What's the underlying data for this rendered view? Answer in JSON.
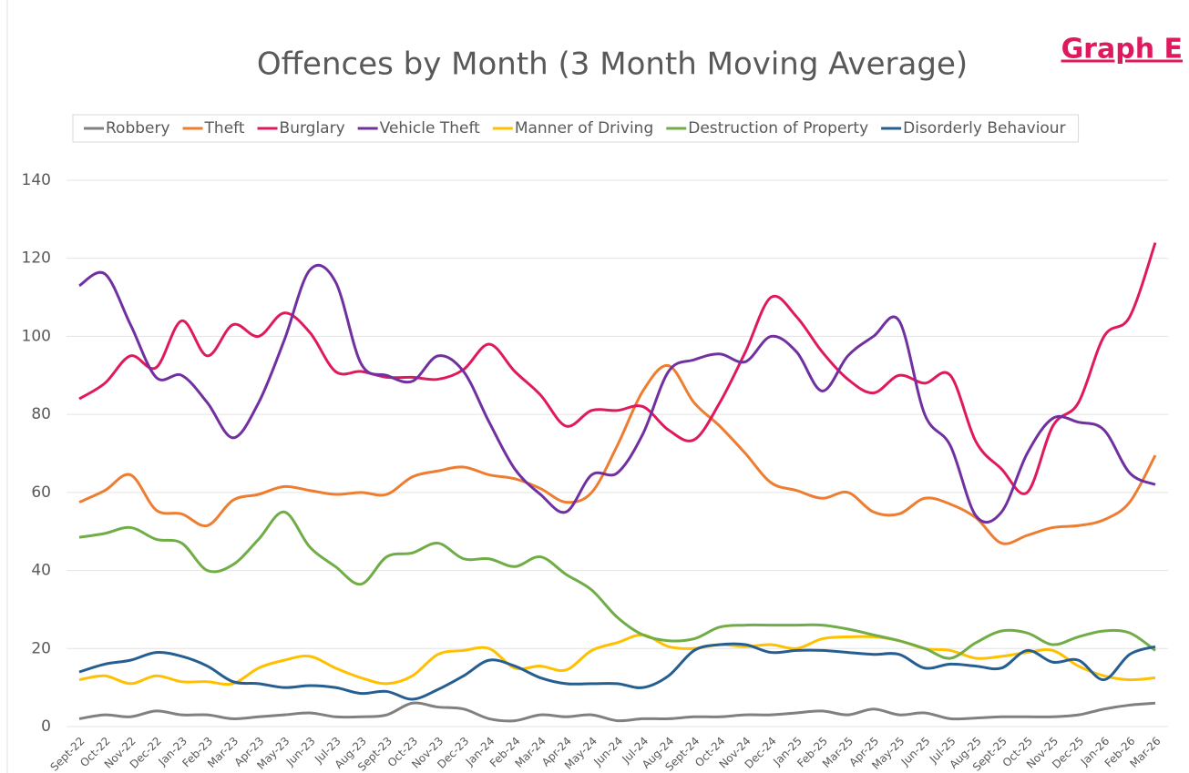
{
  "chart_data": {
    "type": "line",
    "title": "Offences by Month (3 Month Moving Average)",
    "annotation": "Graph E",
    "categories": [
      "Sept-22",
      "Oct-22",
      "Nov-22",
      "Dec-22",
      "Jan-23",
      "Feb-23",
      "Mar-23",
      "Apr-23",
      "May-23",
      "Jun-23",
      "Jul-23",
      "Aug-23",
      "Sept-23",
      "Oct-23",
      "Nov-23",
      "Dec-23",
      "Jan-24",
      "Feb-24",
      "Mar-24",
      "Apr-24",
      "May-24",
      "Jun-24",
      "Jul-24",
      "Aug-24",
      "Sept-24",
      "Oct-24",
      "Nov-24",
      "Dec-24",
      "Jan-25",
      "Feb-25",
      "Mar-25",
      "Apr-25",
      "May-25",
      "Jun-25",
      "Jul-25",
      "Aug-25",
      "Sept-25",
      "Oct-25",
      "Nov-25",
      "Dec-25",
      "Jan-26",
      "Feb-26",
      "Mar-26"
    ],
    "series": [
      {
        "name": "Robbery",
        "color": "#808080",
        "values": [
          2,
          3,
          2.5,
          4,
          3,
          3,
          2,
          2.5,
          3,
          3.5,
          2.5,
          2.5,
          3,
          6,
          5,
          4.5,
          2,
          1.5,
          3,
          2.5,
          3,
          1.5,
          2,
          2,
          2.5,
          2.5,
          3,
          3,
          3.5,
          4,
          3,
          4.5,
          3,
          3.5,
          2,
          2.2,
          2.5,
          2.5,
          2.5,
          3,
          4.5,
          5.5,
          6
        ]
      },
      {
        "name": "Theft",
        "color": "#ed7d31",
        "values": [
          57.5,
          60.5,
          64.5,
          55.5,
          54.5,
          51.5,
          58,
          59.5,
          61.5,
          60.5,
          59.5,
          60,
          59.5,
          64,
          65.5,
          66.5,
          64.5,
          63.5,
          61,
          57.5,
          60,
          72,
          86,
          92.5,
          83,
          77,
          70,
          62.5,
          60.5,
          58.5,
          60,
          55,
          54.5,
          58.5,
          57,
          53.5,
          47,
          49,
          51,
          51.5,
          53,
          57.5,
          69.5
        ]
      },
      {
        "name": "Burglary",
        "color": "#e0195f",
        "values": [
          84,
          88,
          95,
          92,
          104,
          95,
          103,
          100,
          106,
          101,
          91,
          91,
          89.5,
          89.5,
          89,
          91.5,
          98,
          91,
          85,
          77,
          81,
          81,
          82,
          76,
          73.5,
          83,
          96,
          110,
          105,
          96,
          89,
          85.5,
          90,
          88,
          90,
          73,
          66,
          60,
          77,
          83,
          100,
          105,
          124
        ]
      },
      {
        "name": "Vehicle Theft",
        "color": "#7030a0",
        "values": [
          113,
          116,
          103,
          89.5,
          90,
          83,
          74,
          83,
          99,
          117,
          114,
          93,
          90,
          88.5,
          95,
          91,
          78,
          66,
          59.5,
          55,
          64.5,
          65,
          75,
          91,
          94,
          95.5,
          93.5,
          100,
          96,
          86,
          95,
          100,
          104,
          80,
          72,
          54,
          55,
          70,
          79,
          78,
          76,
          65,
          62
        ]
      },
      {
        "name": "Manner of Driving",
        "color": "#ffc000",
        "values": [
          12,
          13,
          11,
          13,
          11.5,
          11.5,
          11,
          15,
          17,
          18,
          15,
          12.5,
          11,
          13,
          18.5,
          19.5,
          20,
          15,
          15.5,
          14.5,
          19.5,
          21.5,
          23.5,
          20.5,
          20,
          21,
          20.5,
          21,
          20,
          22.5,
          23,
          23,
          22,
          20,
          19.5,
          17.5,
          18,
          19,
          19.5,
          15.5,
          13,
          12,
          12.5
        ]
      },
      {
        "name": "Destruction of Property",
        "color": "#70ad47",
        "values": [
          48.5,
          49.5,
          51,
          48,
          47,
          40,
          41.5,
          48,
          55,
          46,
          41,
          36.5,
          43.5,
          44.5,
          47,
          43,
          43,
          41,
          43.5,
          39,
          35,
          28,
          23.5,
          22,
          22.5,
          25.5,
          26,
          26,
          26,
          26,
          25,
          23.5,
          22,
          20,
          17.5,
          21.5,
          24.5,
          24,
          21,
          23,
          24.5,
          24,
          19.5
        ]
      },
      {
        "name": "Disorderly Behaviour",
        "color": "#255e91",
        "values": [
          14,
          16,
          17,
          19,
          18,
          15.5,
          11.5,
          11,
          10,
          10.5,
          10,
          8.5,
          9,
          7,
          9.5,
          13,
          17,
          15.5,
          12.5,
          11,
          11,
          11,
          10,
          13,
          19.5,
          21,
          21,
          19,
          19.5,
          19.5,
          19,
          18.5,
          18.5,
          15,
          16,
          15.5,
          15,
          19.5,
          16.5,
          17,
          12,
          18.5,
          20.5
        ]
      }
    ],
    "ylim": [
      0,
      140
    ],
    "yticks": [
      0,
      20,
      40,
      60,
      80,
      100,
      120,
      140
    ],
    "grid": true,
    "legend": "top"
  }
}
